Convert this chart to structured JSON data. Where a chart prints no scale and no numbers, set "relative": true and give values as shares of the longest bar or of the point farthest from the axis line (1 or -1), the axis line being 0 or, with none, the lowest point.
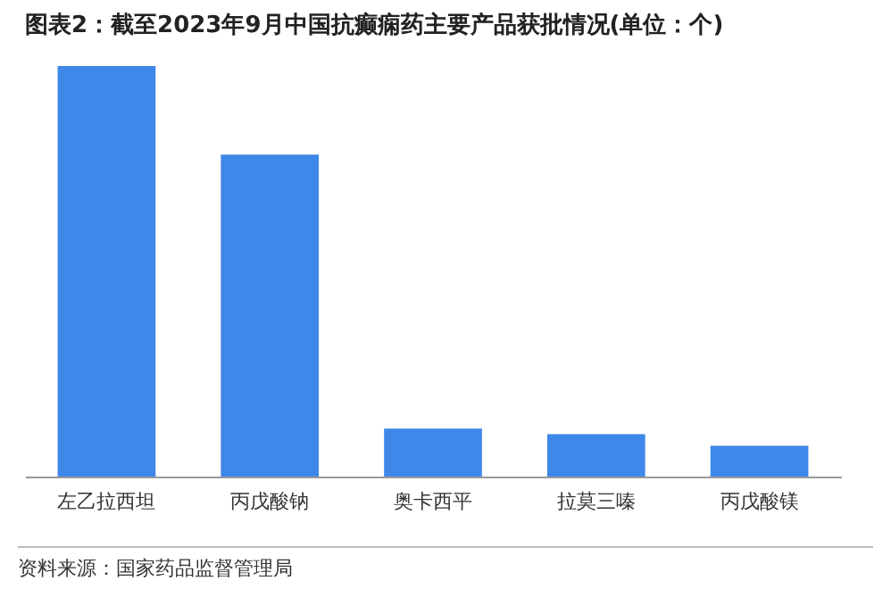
{
  "chart_data": {
    "type": "bar",
    "title": "图表2：截至2023年9月中国抗癫痫药主要产品获批情况(单位：个)",
    "categories": [
      "左乙拉西坦",
      "丙戊酸钠",
      "奥卡西平",
      "拉莫三嗪",
      "丙戊酸镁"
    ],
    "values": [
      1,
      0.784,
      0.117,
      0.103,
      0.075
    ],
    "color": "#3f87e8",
    "relative": true,
    "annotations": [
      "资料来源：国家药品监督管理局"
    ]
  }
}
